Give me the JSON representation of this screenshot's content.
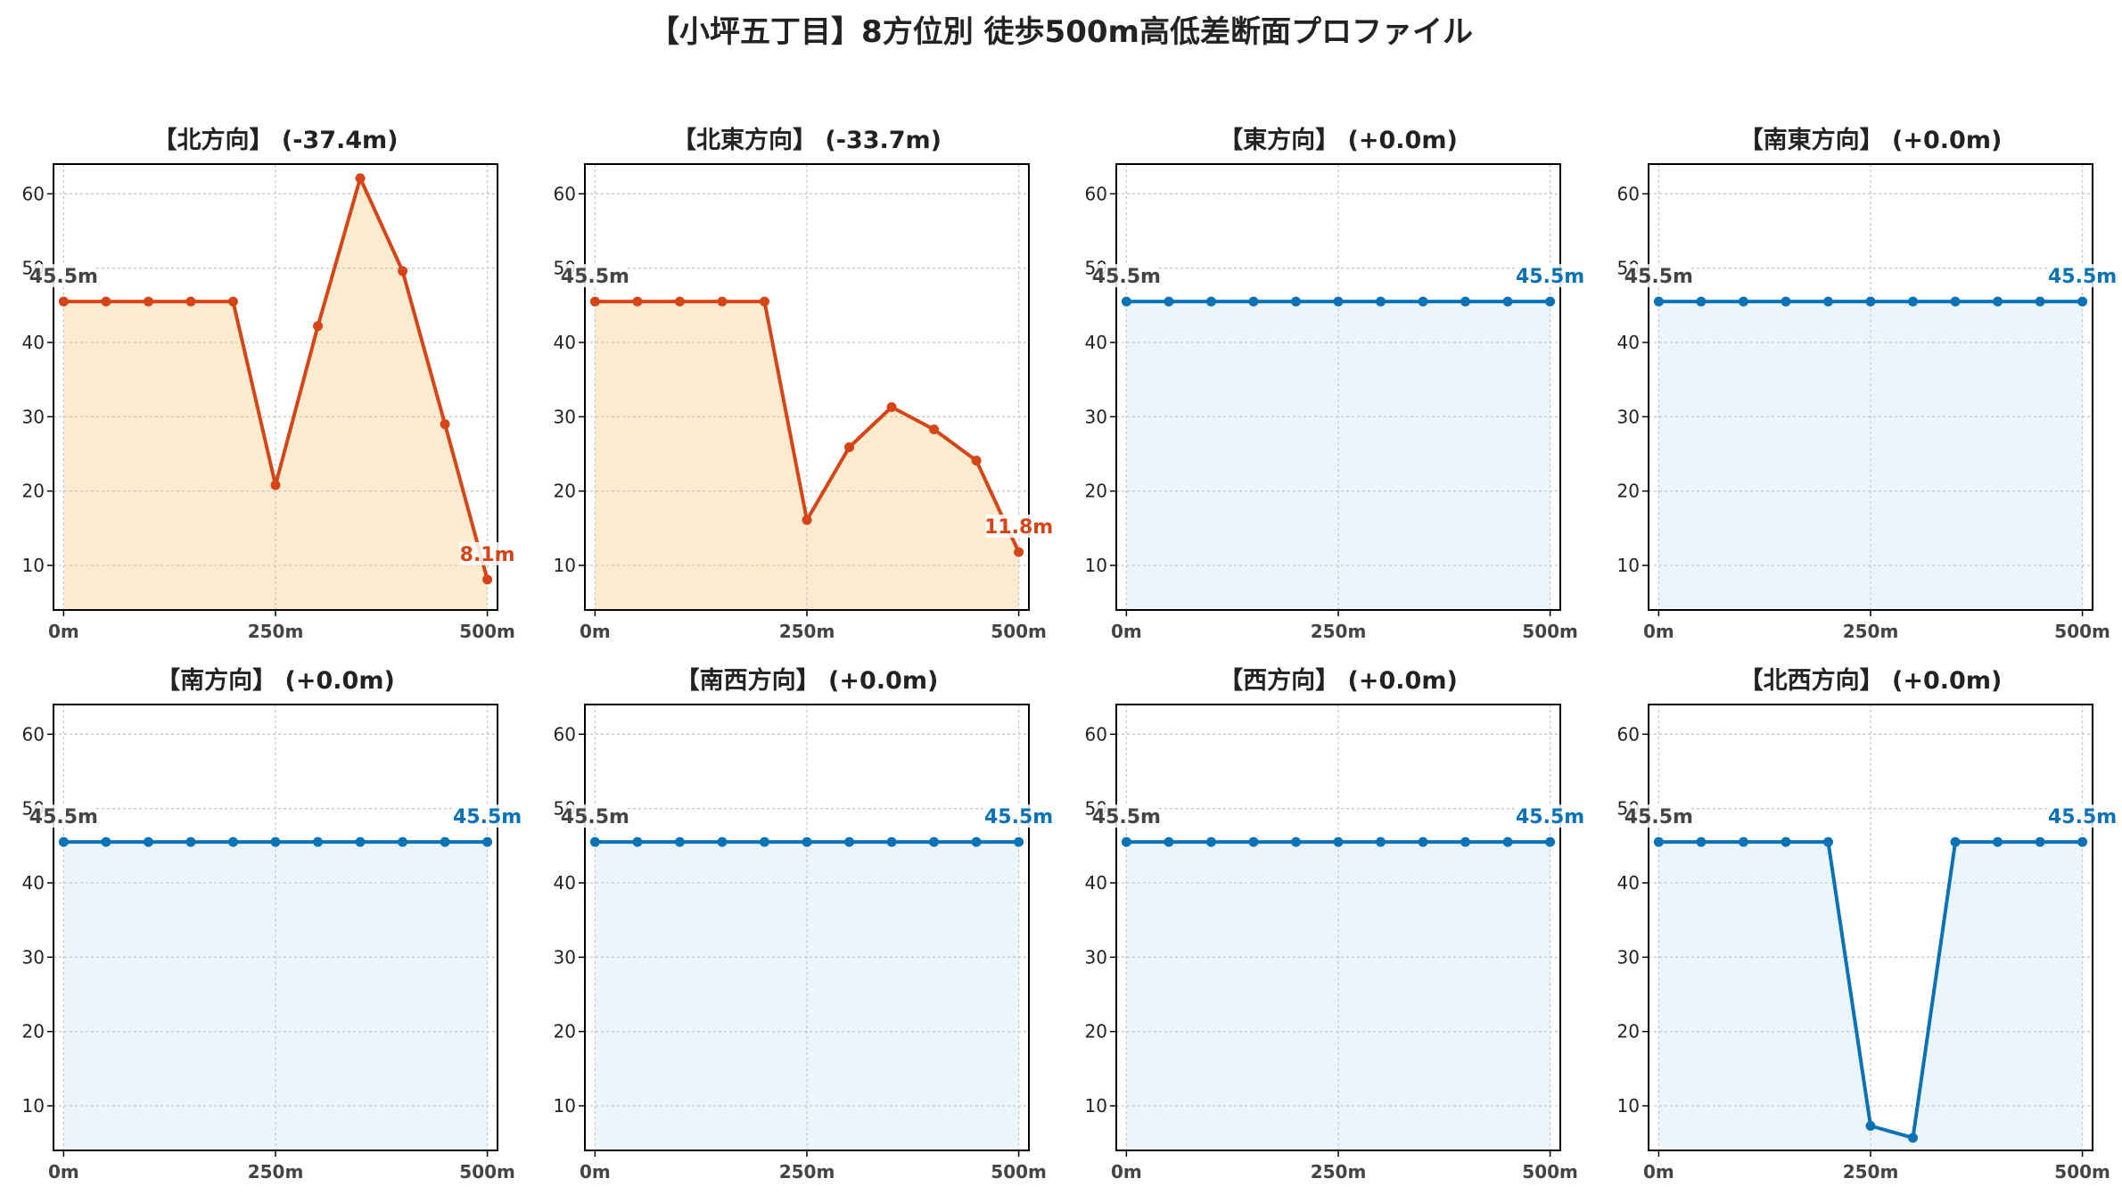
{
  "title": "【小坪五丁目】8方位別 徒歩500m高低差断面プロファイル",
  "colors": {
    "down_line": "#d64517",
    "down_fill": "#fdebd0",
    "flat_line": "#0a72b5",
    "flat_fill": "#eaf6fb",
    "start_label": "#444444",
    "grid": "#c8c8c8"
  },
  "chart_data": [
    {
      "type": "area",
      "title": "【北方向】 (-37.4m)",
      "style": "down",
      "x": [
        0,
        50,
        100,
        150,
        200,
        250,
        300,
        350,
        400,
        450,
        500
      ],
      "values": [
        45.5,
        45.5,
        45.5,
        45.5,
        45.5,
        20.8,
        42.2,
        62.1,
        49.6,
        29.0,
        8.1
      ],
      "start_label": "45.5m",
      "end_label": "8.1m",
      "xticks": [
        "0m",
        "250m",
        "500m"
      ],
      "yticks": [
        10,
        20,
        30,
        40,
        50,
        60
      ],
      "ylim": [
        4,
        64
      ],
      "xlim": [
        -12,
        512
      ],
      "grid": true
    },
    {
      "type": "area",
      "title": "【北東方向】 (-33.7m)",
      "style": "down",
      "x": [
        0,
        50,
        100,
        150,
        200,
        250,
        300,
        350,
        400,
        450,
        500
      ],
      "values": [
        45.5,
        45.5,
        45.5,
        45.5,
        45.5,
        16.1,
        25.9,
        31.3,
        28.3,
        24.1,
        11.8
      ],
      "start_label": "45.5m",
      "end_label": "11.8m",
      "xticks": [
        "0m",
        "250m",
        "500m"
      ],
      "yticks": [
        10,
        20,
        30,
        40,
        50,
        60
      ],
      "ylim": [
        4,
        64
      ],
      "xlim": [
        -12,
        512
      ],
      "grid": true
    },
    {
      "type": "area",
      "title": "【東方向】 (+0.0m)",
      "style": "flat",
      "x": [
        0,
        50,
        100,
        150,
        200,
        250,
        300,
        350,
        400,
        450,
        500
      ],
      "values": [
        45.5,
        45.5,
        45.5,
        45.5,
        45.5,
        45.5,
        45.5,
        45.5,
        45.5,
        45.5,
        45.5
      ],
      "start_label": "45.5m",
      "end_label": "45.5m",
      "xticks": [
        "0m",
        "250m",
        "500m"
      ],
      "yticks": [
        10,
        20,
        30,
        40,
        50,
        60
      ],
      "ylim": [
        4,
        64
      ],
      "xlim": [
        -12,
        512
      ],
      "grid": true
    },
    {
      "type": "area",
      "title": "【南東方向】 (+0.0m)",
      "style": "flat",
      "x": [
        0,
        50,
        100,
        150,
        200,
        250,
        300,
        350,
        400,
        450,
        500
      ],
      "values": [
        45.5,
        45.5,
        45.5,
        45.5,
        45.5,
        45.5,
        45.5,
        45.5,
        45.5,
        45.5,
        45.5
      ],
      "start_label": "45.5m",
      "end_label": "45.5m",
      "xticks": [
        "0m",
        "250m",
        "500m"
      ],
      "yticks": [
        10,
        20,
        30,
        40,
        50,
        60
      ],
      "ylim": [
        4,
        64
      ],
      "xlim": [
        -12,
        512
      ],
      "grid": true
    },
    {
      "type": "area",
      "title": "【南方向】 (+0.0m)",
      "style": "flat",
      "x": [
        0,
        50,
        100,
        150,
        200,
        250,
        300,
        350,
        400,
        450,
        500
      ],
      "values": [
        45.5,
        45.5,
        45.5,
        45.5,
        45.5,
        45.5,
        45.5,
        45.5,
        45.5,
        45.5,
        45.5
      ],
      "start_label": "45.5m",
      "end_label": "45.5m",
      "xticks": [
        "0m",
        "250m",
        "500m"
      ],
      "yticks": [
        10,
        20,
        30,
        40,
        50,
        60
      ],
      "ylim": [
        4,
        64
      ],
      "xlim": [
        -12,
        512
      ],
      "grid": true
    },
    {
      "type": "area",
      "title": "【南西方向】 (+0.0m)",
      "style": "flat",
      "x": [
        0,
        50,
        100,
        150,
        200,
        250,
        300,
        350,
        400,
        450,
        500
      ],
      "values": [
        45.5,
        45.5,
        45.5,
        45.5,
        45.5,
        45.5,
        45.5,
        45.5,
        45.5,
        45.5,
        45.5
      ],
      "start_label": "45.5m",
      "end_label": "45.5m",
      "xticks": [
        "0m",
        "250m",
        "500m"
      ],
      "yticks": [
        10,
        20,
        30,
        40,
        50,
        60
      ],
      "ylim": [
        4,
        64
      ],
      "xlim": [
        -12,
        512
      ],
      "grid": true
    },
    {
      "type": "area",
      "title": "【西方向】 (+0.0m)",
      "style": "flat",
      "x": [
        0,
        50,
        100,
        150,
        200,
        250,
        300,
        350,
        400,
        450,
        500
      ],
      "values": [
        45.5,
        45.5,
        45.5,
        45.5,
        45.5,
        45.5,
        45.5,
        45.5,
        45.5,
        45.5,
        45.5
      ],
      "start_label": "45.5m",
      "end_label": "45.5m",
      "xticks": [
        "0m",
        "250m",
        "500m"
      ],
      "yticks": [
        10,
        20,
        30,
        40,
        50,
        60
      ],
      "ylim": [
        4,
        64
      ],
      "xlim": [
        -12,
        512
      ],
      "grid": true
    },
    {
      "type": "area",
      "title": "【北西方向】 (+0.0m)",
      "style": "flat",
      "x": [
        0,
        50,
        100,
        150,
        200,
        250,
        300,
        350,
        400,
        450,
        500
      ],
      "values": [
        45.5,
        45.5,
        45.5,
        45.5,
        45.5,
        7.3,
        5.7,
        45.5,
        45.5,
        45.5,
        45.5
      ],
      "start_label": "45.5m",
      "end_label": "45.5m",
      "xticks": [
        "0m",
        "250m",
        "500m"
      ],
      "yticks": [
        10,
        20,
        30,
        40,
        50,
        60
      ],
      "ylim": [
        4,
        64
      ],
      "xlim": [
        -12,
        512
      ],
      "grid": true
    }
  ]
}
